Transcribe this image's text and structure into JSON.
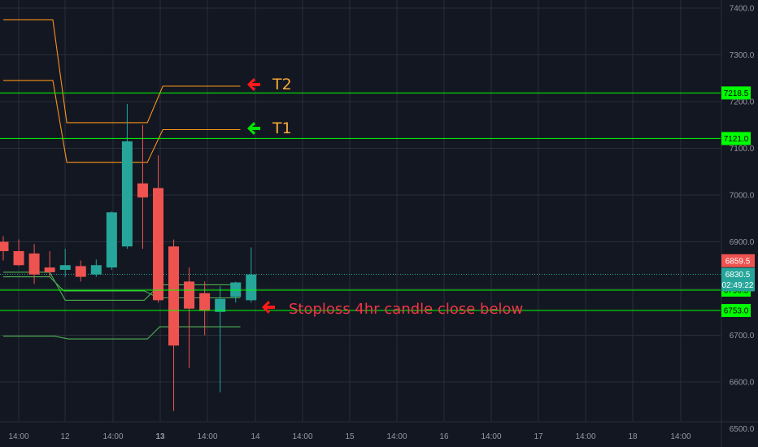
{
  "chart_data": {
    "type": "candlestick",
    "title": "",
    "xlabel": "",
    "ylabel": "",
    "ylim": [
      6490,
      7420
    ],
    "y_ticks": [
      "6500.0",
      "6600.0",
      "6700.0",
      "6800.0",
      "6900.0",
      "7000.0",
      "7100.0",
      "7200.0",
      "7300.0",
      "7400.0"
    ],
    "x_tick_labels": [
      "14:00",
      "12",
      "14:00",
      "13",
      "14:00",
      "14",
      "14:00",
      "15",
      "14:00",
      "16",
      "14:00",
      "17",
      "14:00",
      "18",
      "14:00"
    ],
    "colors": {
      "background": "#131722",
      "grid": "#2a2e39",
      "up": "#26a69a",
      "down": "#ef5350",
      "level_line": "#00ff00",
      "orange_line": "#f7931a",
      "green_line": "#4caf50",
      "red_arrow": "#ff1a1a",
      "green_arrow": "#00e600",
      "target_text": "#f7a93b",
      "stop_text": "#f23645"
    },
    "candles": [
      {
        "o": 6900,
        "h": 6912,
        "l": 6860,
        "c": 6880
      },
      {
        "o": 6880,
        "h": 6905,
        "l": 6848,
        "c": 6850
      },
      {
        "o": 6875,
        "h": 6895,
        "l": 6810,
        "c": 6830
      },
      {
        "o": 6845,
        "h": 6880,
        "l": 6825,
        "c": 6835
      },
      {
        "o": 6840,
        "h": 6885,
        "l": 6825,
        "c": 6850
      },
      {
        "o": 6848,
        "h": 6860,
        "l": 6815,
        "c": 6825
      },
      {
        "o": 6830,
        "h": 6862,
        "l": 6825,
        "c": 6850
      },
      {
        "o": 6845,
        "h": 6965,
        "l": 6840,
        "c": 6963
      },
      {
        "o": 6890,
        "h": 7195,
        "l": 6885,
        "c": 7115
      },
      {
        "o": 7025,
        "h": 7150,
        "l": 6885,
        "c": 6995
      },
      {
        "o": 7015,
        "h": 7085,
        "l": 6770,
        "c": 6775
      },
      {
        "o": 6890,
        "h": 6905,
        "l": 6538,
        "c": 6678
      },
      {
        "o": 6815,
        "h": 6845,
        "l": 6630,
        "c": 6757
      },
      {
        "o": 6790,
        "h": 6815,
        "l": 6700,
        "c": 6752
      },
      {
        "o": 6750,
        "h": 6805,
        "l": 6578,
        "c": 6778
      },
      {
        "o": 6782,
        "h": 6815,
        "l": 6770,
        "c": 6813
      },
      {
        "o": 6775,
        "h": 6888,
        "l": 6770,
        "c": 6830
      }
    ],
    "levels": [
      {
        "name": "T2",
        "value": 7218.5,
        "label": "7218.5"
      },
      {
        "name": "T1",
        "value": 7121.0,
        "label": "7121.0"
      },
      {
        "name": "level-6796",
        "value": 6796.5,
        "label": "6796.5"
      },
      {
        "name": "Stoploss",
        "value": 6753.0,
        "label": "6753.0"
      }
    ],
    "orange_upper": [
      [
        0,
        7375
      ],
      [
        3.2,
        7375
      ],
      [
        4.1,
        7155
      ],
      [
        9.3,
        7155
      ],
      [
        10.3,
        7233
      ],
      [
        15.3,
        7233
      ]
    ],
    "orange_lower": [
      [
        0,
        7245
      ],
      [
        3.2,
        7245
      ],
      [
        4.1,
        7070
      ],
      [
        9.3,
        7070
      ],
      [
        10.3,
        7140
      ],
      [
        15.3,
        7140
      ]
    ],
    "green_upper": [
      [
        0,
        6835
      ],
      [
        3.0,
        6835
      ],
      [
        4.0,
        6775
      ],
      [
        9.1,
        6775
      ],
      [
        10.1,
        6808
      ],
      [
        15.3,
        6808
      ]
    ],
    "green_middle": [
      [
        0,
        6825
      ],
      [
        3.0,
        6825
      ],
      [
        3.9,
        6795
      ],
      [
        9.1,
        6795
      ],
      [
        10.0,
        6780
      ],
      [
        15.3,
        6780
      ]
    ],
    "green_lower": [
      [
        0,
        6698
      ],
      [
        3.3,
        6698
      ],
      [
        4.2,
        6692
      ],
      [
        9.3,
        6692
      ],
      [
        10.1,
        6718
      ],
      [
        15.3,
        6718
      ]
    ],
    "price_tags": [
      {
        "label": "6859.5",
        "value": 6859.5,
        "kind": "down"
      },
      {
        "label": "6830.5",
        "value": 6830.5,
        "kind": "up"
      },
      {
        "label": "02:49:22",
        "value": 6808,
        "kind": "up"
      }
    ],
    "annotations": {
      "t2": "T2",
      "t1": "T1",
      "stoploss": "Stoploss 4hr candle close below"
    }
  }
}
